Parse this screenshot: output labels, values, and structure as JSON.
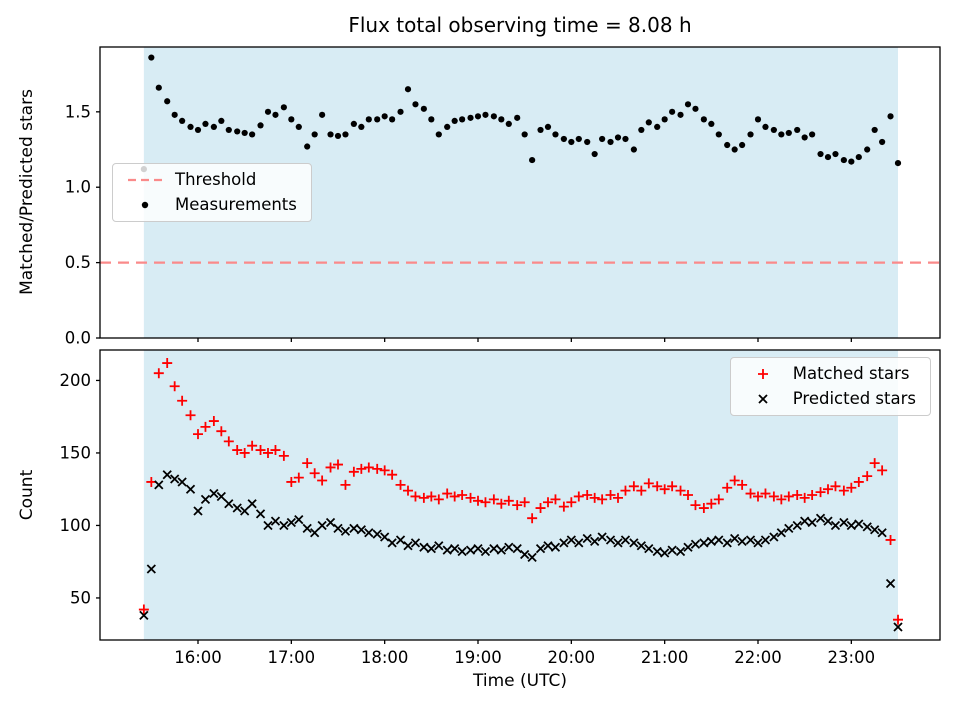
{
  "colors": {
    "background": "#ffffff",
    "shade": "#d8ecf4",
    "threshold": "#fa8a8a",
    "matched": "#ff0000",
    "predicted": "#000000",
    "measurements": "#000000",
    "spine": "#000000"
  },
  "x_axis": {
    "label": "Time (UTC)",
    "xlim": [
      14.95,
      23.95
    ],
    "ticks": [
      16,
      17,
      18,
      19,
      20,
      21,
      22,
      23
    ],
    "tick_labels": [
      "16:00",
      "17:00",
      "18:00",
      "19:00",
      "20:00",
      "21:00",
      "22:00",
      "23:00"
    ],
    "shaded_span_hours": [
      15.42,
      23.5
    ]
  },
  "chart_data": [
    {
      "type": "scatter",
      "title": "Flux total observing time = 8.08 h",
      "ylabel": "Matched/Predicted stars",
      "ylim": [
        0,
        1.93
      ],
      "yticks": [
        0,
        0.5,
        1,
        1.5
      ],
      "ytick_labels": [
        "0.0",
        "0.5",
        "1.0",
        "1.5"
      ],
      "grid": false,
      "legend": {
        "position": "center-left",
        "items": [
          "Threshold",
          "Measurements"
        ]
      },
      "threshold": {
        "label": "Threshold",
        "y": 0.5,
        "linestyle": "dashed"
      },
      "shaded_span_hours": [
        15.42,
        23.5
      ],
      "x_hours": [
        15.42,
        15.5,
        15.58,
        15.67,
        15.75,
        15.83,
        15.92,
        16.0,
        16.08,
        16.17,
        16.25,
        16.33,
        16.42,
        16.5,
        16.58,
        16.67,
        16.75,
        16.83,
        16.92,
        17.0,
        17.08,
        17.17,
        17.25,
        17.33,
        17.42,
        17.5,
        17.58,
        17.67,
        17.75,
        17.83,
        17.92,
        18.0,
        18.08,
        18.17,
        18.25,
        18.33,
        18.42,
        18.5,
        18.58,
        18.67,
        18.75,
        18.83,
        18.92,
        19.0,
        19.08,
        19.17,
        19.25,
        19.33,
        19.42,
        19.5,
        19.58,
        19.67,
        19.75,
        19.83,
        19.92,
        20.0,
        20.08,
        20.17,
        20.25,
        20.33,
        20.42,
        20.5,
        20.58,
        20.67,
        20.75,
        20.83,
        20.92,
        21.0,
        21.08,
        21.17,
        21.25,
        21.33,
        21.42,
        21.5,
        21.58,
        21.67,
        21.75,
        21.83,
        21.92,
        22.0,
        22.08,
        22.17,
        22.25,
        22.33,
        22.42,
        22.5,
        22.58,
        22.67,
        22.75,
        22.83,
        22.92,
        23.0,
        23.08,
        23.17,
        23.25,
        23.33,
        23.42,
        23.5
      ],
      "series": [
        {
          "name": "Measurements",
          "marker": "dot",
          "color": "#000000",
          "y": [
            1.12,
            1.86,
            1.66,
            1.57,
            1.48,
            1.44,
            1.4,
            1.38,
            1.42,
            1.4,
            1.44,
            1.38,
            1.37,
            1.36,
            1.35,
            1.41,
            1.5,
            1.48,
            1.53,
            1.45,
            1.4,
            1.27,
            1.35,
            1.48,
            1.35,
            1.34,
            1.35,
            1.42,
            1.4,
            1.45,
            1.45,
            1.47,
            1.45,
            1.5,
            1.65,
            1.55,
            1.52,
            1.45,
            1.35,
            1.4,
            1.44,
            1.45,
            1.46,
            1.47,
            1.48,
            1.47,
            1.45,
            1.42,
            1.46,
            1.35,
            1.18,
            1.38,
            1.4,
            1.35,
            1.32,
            1.3,
            1.32,
            1.3,
            1.22,
            1.32,
            1.3,
            1.33,
            1.32,
            1.25,
            1.38,
            1.43,
            1.4,
            1.45,
            1.5,
            1.48,
            1.55,
            1.52,
            1.45,
            1.42,
            1.35,
            1.28,
            1.25,
            1.28,
            1.35,
            1.45,
            1.4,
            1.38,
            1.35,
            1.36,
            1.38,
            1.33,
            1.35,
            1.22,
            1.2,
            1.22,
            1.18,
            1.17,
            1.2,
            1.25,
            1.38,
            1.3,
            1.47,
            1.16
          ]
        }
      ]
    },
    {
      "type": "scatter",
      "ylabel": "Count",
      "xlabel": "Time (UTC)",
      "ylim": [
        21,
        221
      ],
      "yticks": [
        50,
        100,
        150,
        200
      ],
      "ytick_labels": [
        "50",
        "100",
        "150",
        "200"
      ],
      "grid": false,
      "legend": {
        "position": "upper-right",
        "items": [
          "Matched stars",
          "Predicted stars"
        ]
      },
      "shaded_span_hours": [
        15.42,
        23.5
      ],
      "x_hours": [
        15.42,
        15.5,
        15.58,
        15.67,
        15.75,
        15.83,
        15.92,
        16.0,
        16.08,
        16.17,
        16.25,
        16.33,
        16.42,
        16.5,
        16.58,
        16.67,
        16.75,
        16.83,
        16.92,
        17.0,
        17.08,
        17.17,
        17.25,
        17.33,
        17.42,
        17.5,
        17.58,
        17.67,
        17.75,
        17.83,
        17.92,
        18.0,
        18.08,
        18.17,
        18.25,
        18.33,
        18.42,
        18.5,
        18.58,
        18.67,
        18.75,
        18.83,
        18.92,
        19.0,
        19.08,
        19.17,
        19.25,
        19.33,
        19.42,
        19.5,
        19.58,
        19.67,
        19.75,
        19.83,
        19.92,
        20.0,
        20.08,
        20.17,
        20.25,
        20.33,
        20.42,
        20.5,
        20.58,
        20.67,
        20.75,
        20.83,
        20.92,
        21.0,
        21.08,
        21.17,
        21.25,
        21.33,
        21.42,
        21.5,
        21.58,
        21.67,
        21.75,
        21.83,
        21.92,
        22.0,
        22.08,
        22.17,
        22.25,
        22.33,
        22.42,
        22.5,
        22.58,
        22.67,
        22.75,
        22.83,
        22.92,
        23.0,
        23.08,
        23.17,
        23.25,
        23.33,
        23.42,
        23.5
      ],
      "series": [
        {
          "name": "Matched stars",
          "marker": "plus",
          "color": "#ff0000",
          "y": [
            42,
            130,
            205,
            212,
            196,
            186,
            176,
            163,
            168,
            172,
            165,
            158,
            152,
            150,
            155,
            152,
            150,
            152,
            148,
            130,
            133,
            143,
            136,
            131,
            140,
            142,
            128,
            137,
            139,
            140,
            139,
            138,
            135,
            128,
            124,
            120,
            119,
            120,
            118,
            122,
            120,
            121,
            119,
            117,
            116,
            118,
            115,
            117,
            114,
            116,
            105,
            112,
            116,
            118,
            113,
            116,
            120,
            121,
            119,
            118,
            121,
            119,
            124,
            127,
            124,
            129,
            127,
            125,
            127,
            124,
            121,
            114,
            112,
            115,
            118,
            126,
            131,
            128,
            122,
            120,
            122,
            120,
            118,
            120,
            121,
            119,
            121,
            123,
            125,
            127,
            124,
            126,
            130,
            134,
            143,
            138,
            90,
            35
          ]
        },
        {
          "name": "Predicted stars",
          "marker": "x",
          "color": "#000000",
          "y": [
            38,
            70,
            128,
            135,
            132,
            130,
            125,
            110,
            118,
            122,
            120,
            115,
            112,
            110,
            115,
            108,
            100,
            103,
            100,
            102,
            104,
            98,
            95,
            100,
            102,
            98,
            96,
            98,
            97,
            95,
            94,
            92,
            88,
            90,
            86,
            88,
            85,
            84,
            86,
            83,
            84,
            82,
            83,
            84,
            82,
            84,
            83,
            85,
            84,
            80,
            78,
            84,
            86,
            85,
            88,
            90,
            88,
            91,
            89,
            92,
            90,
            88,
            90,
            88,
            86,
            84,
            82,
            81,
            83,
            82,
            85,
            87,
            88,
            89,
            90,
            88,
            91,
            89,
            90,
            88,
            90,
            92,
            95,
            98,
            100,
            103,
            102,
            105,
            103,
            100,
            102,
            100,
            101,
            99,
            97,
            95,
            60,
            30
          ]
        }
      ]
    }
  ]
}
